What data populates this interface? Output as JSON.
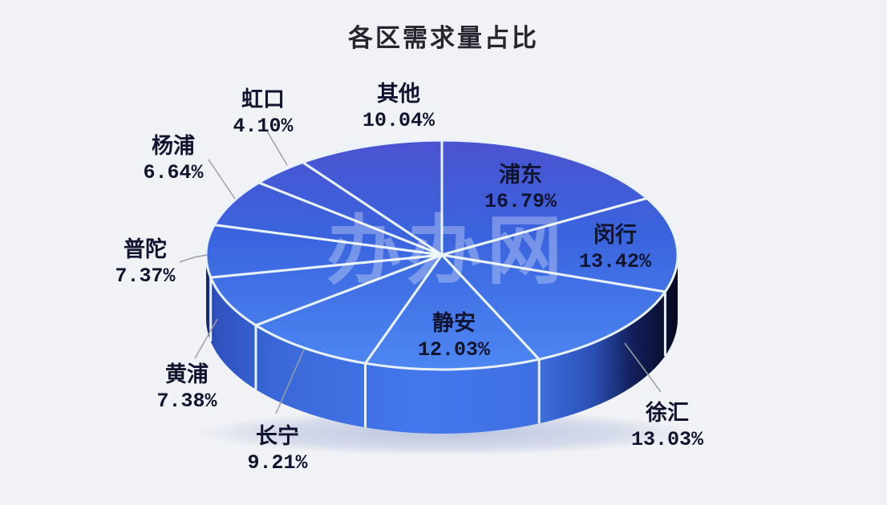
{
  "page": {
    "background": "#F1F2F5"
  },
  "title": "各区需求量占比",
  "watermark": "办办网",
  "chart_data": {
    "type": "pie",
    "style": "3d",
    "title": "各区需求量占比",
    "unit": "percent",
    "direction": "clockwise",
    "start_angle": "12-oclock",
    "legend": "none",
    "slices": [
      {
        "name": "浦东",
        "value": 16.79,
        "percent_label": "16.79%",
        "label_placement": "inside"
      },
      {
        "name": "闵行",
        "value": 13.42,
        "percent_label": "13.42%",
        "label_placement": "inside"
      },
      {
        "name": "徐汇",
        "value": 13.03,
        "percent_label": "13.03%",
        "label_placement": "outside"
      },
      {
        "name": "静安",
        "value": 12.03,
        "percent_label": "12.03%",
        "label_placement": "inside"
      },
      {
        "name": "长宁",
        "value": 9.21,
        "percent_label": "9.21%",
        "label_placement": "outside"
      },
      {
        "name": "黄浦",
        "value": 7.38,
        "percent_label": "7.38%",
        "label_placement": "outside"
      },
      {
        "name": "普陀",
        "value": 7.37,
        "percent_label": "7.37%",
        "label_placement": "outside"
      },
      {
        "name": "杨浦",
        "value": 6.64,
        "percent_label": "6.64%",
        "label_placement": "outside"
      },
      {
        "name": "虹口",
        "value": 4.1,
        "percent_label": "4.10%",
        "label_placement": "outside"
      },
      {
        "name": "其他",
        "value": 10.04,
        "percent_label": "10.04%",
        "label_placement": "outside"
      }
    ],
    "colors": {
      "top_gradient_far": "#4B53D0",
      "top_gradient_mid": "#3A64DE",
      "top_gradient_near": "#4D87F2",
      "side_bright": "#4377EB",
      "side_mid": "#3A68D8",
      "side_dark": "#0A1238",
      "side_edge_dark": "#15215C",
      "divider": "#E9F2FB",
      "label_text": "#10142E",
      "leader_line": "#9B9FA6",
      "title_text": "#26262E",
      "watermark_color": "#FFFFFF"
    }
  }
}
